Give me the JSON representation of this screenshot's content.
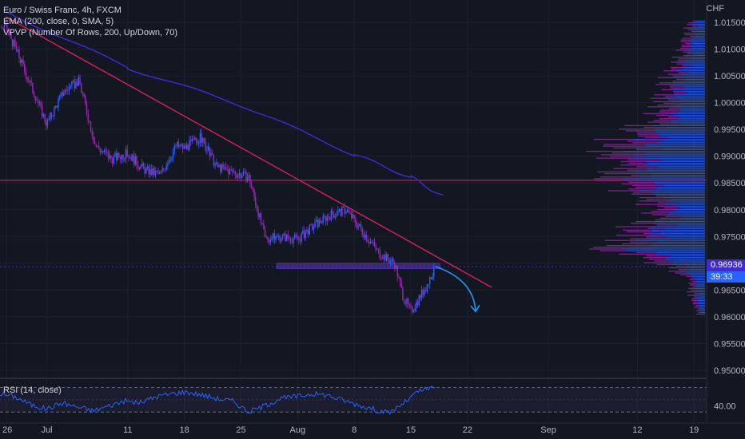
{
  "header": {
    "symbol_line": "Euro / Swiss Franc, 4h, FXCM",
    "ema_line": "EMA (200, close, 0, SMA, 5)",
    "vpvp_line": "VPVP (Number Of Rows, 200, Up/Down, 70)"
  },
  "price_axis": {
    "currency": "CHF",
    "current_price": "0.96936",
    "countdown": "39:33"
  },
  "rsi": {
    "label": "RSI (14, close)",
    "level_label": "40.00"
  },
  "colors": {
    "background": "#131722",
    "up": "#2962ff",
    "down": "#9c27b0",
    "ema": "#3f2bd6",
    "trendline": "#e91e63",
    "arrow": "#2196f3"
  },
  "chart_data": [
    {
      "type": "line",
      "title": "Euro / Swiss Franc, 4h, FXCM",
      "series_kind": "candlestick",
      "x_tick_labels": [
        "26",
        "Jul",
        "11",
        "18",
        "25",
        "Aug",
        "8",
        "15",
        "22",
        "Sep",
        "12",
        "19"
      ],
      "y_tick_labels": [
        "1.01500",
        "1.01000",
        "1.00500",
        "1.00000",
        "0.99500",
        "0.99000",
        "0.98500",
        "0.98000",
        "0.97500",
        "0.97000",
        "0.96500",
        "0.96000",
        "0.95500",
        "0.95000"
      ],
      "ylim": [
        0.9485,
        1.0178
      ],
      "price_path": [
        {
          "x": "Jun 26",
          "y": 1.014
        },
        {
          "x": "Jun 28",
          "y": 1.007
        },
        {
          "x": "Jul 1",
          "y": 0.996
        },
        {
          "x": "Jul 3",
          "y": 1.002
        },
        {
          "x": "Jul 5",
          "y": 1.004
        },
        {
          "x": "Jul 7",
          "y": 0.992
        },
        {
          "x": "Jul 9",
          "y": 0.9895
        },
        {
          "x": "Jul 11",
          "y": 0.9905
        },
        {
          "x": "Jul 13",
          "y": 0.9875
        },
        {
          "x": "Jul 15",
          "y": 0.9865
        },
        {
          "x": "Jul 17",
          "y": 0.992
        },
        {
          "x": "Jul 18",
          "y": 0.9915
        },
        {
          "x": "Jul 20",
          "y": 0.9935
        },
        {
          "x": "Jul 22",
          "y": 0.988
        },
        {
          "x": "Jul 24",
          "y": 0.987
        },
        {
          "x": "Jul 26",
          "y": 0.986
        },
        {
          "x": "Jul 28",
          "y": 0.9745
        },
        {
          "x": "Jul 30",
          "y": 0.975
        },
        {
          "x": "Aug 1",
          "y": 0.9745
        },
        {
          "x": "Aug 3",
          "y": 0.977
        },
        {
          "x": "Aug 5",
          "y": 0.979
        },
        {
          "x": "Aug 7",
          "y": 0.98
        },
        {
          "x": "Aug 9",
          "y": 0.976
        },
        {
          "x": "Aug 11",
          "y": 0.972
        },
        {
          "x": "Aug 13",
          "y": 0.97
        },
        {
          "x": "Aug 14",
          "y": 0.964
        },
        {
          "x": "Aug 15",
          "y": 0.961
        },
        {
          "x": "Aug 17",
          "y": 0.966
        },
        {
          "x": "Aug 18",
          "y": 0.9694
        }
      ],
      "ema_200": [
        {
          "x": "Jun 26",
          "y": 1.017
        },
        {
          "x": "Jul 11",
          "y": 1.0065
        },
        {
          "x": "Jul 25",
          "y": 0.9995
        },
        {
          "x": "Aug 8",
          "y": 0.9903
        },
        {
          "x": "Aug 15",
          "y": 0.9861
        },
        {
          "x": "Aug 19",
          "y": 0.9825
        }
      ],
      "trendline": [
        {
          "x": "Jun 26",
          "y": 1.016
        },
        {
          "x": "Aug 25",
          "y": 0.9655
        }
      ],
      "horizontal_level": 0.9855,
      "support_zone": [
        0.969,
        0.97
      ],
      "projection_arrow": [
        {
          "x": "Aug 18",
          "y": 0.9694
        },
        {
          "x": "Aug 21",
          "y": 0.967
        },
        {
          "x": "Aug 23",
          "y": 0.961
        }
      ],
      "volume_profile": {
        "direction": "right-aligned horizontal histogram",
        "price_levels": [
          1.015,
          1.012,
          1.009,
          1.006,
          1.003,
          1.0,
          0.997,
          0.994,
          0.991,
          0.988,
          0.9855,
          0.982,
          0.979,
          0.976,
          0.973,
          0.97,
          0.967,
          0.964,
          0.961
        ],
        "relative_volume": [
          0.12,
          0.2,
          0.22,
          0.3,
          0.35,
          0.4,
          0.45,
          0.72,
          0.85,
          0.6,
          1.0,
          0.55,
          0.45,
          0.7,
          0.85,
          0.4,
          0.15,
          0.12,
          0.08
        ]
      }
    },
    {
      "type": "line",
      "title": "RSI (14, close)",
      "ylim": [
        25,
        80
      ],
      "bands": [
        30,
        50,
        70
      ],
      "y_tick_labels": [
        "40.00"
      ],
      "values": [
        60,
        55,
        42,
        35,
        45,
        38,
        32,
        40,
        48,
        45,
        55,
        60,
        63,
        58,
        52,
        48,
        30,
        40,
        52,
        55,
        60,
        58,
        50,
        42,
        35,
        28,
        45,
        65,
        70
      ]
    }
  ]
}
